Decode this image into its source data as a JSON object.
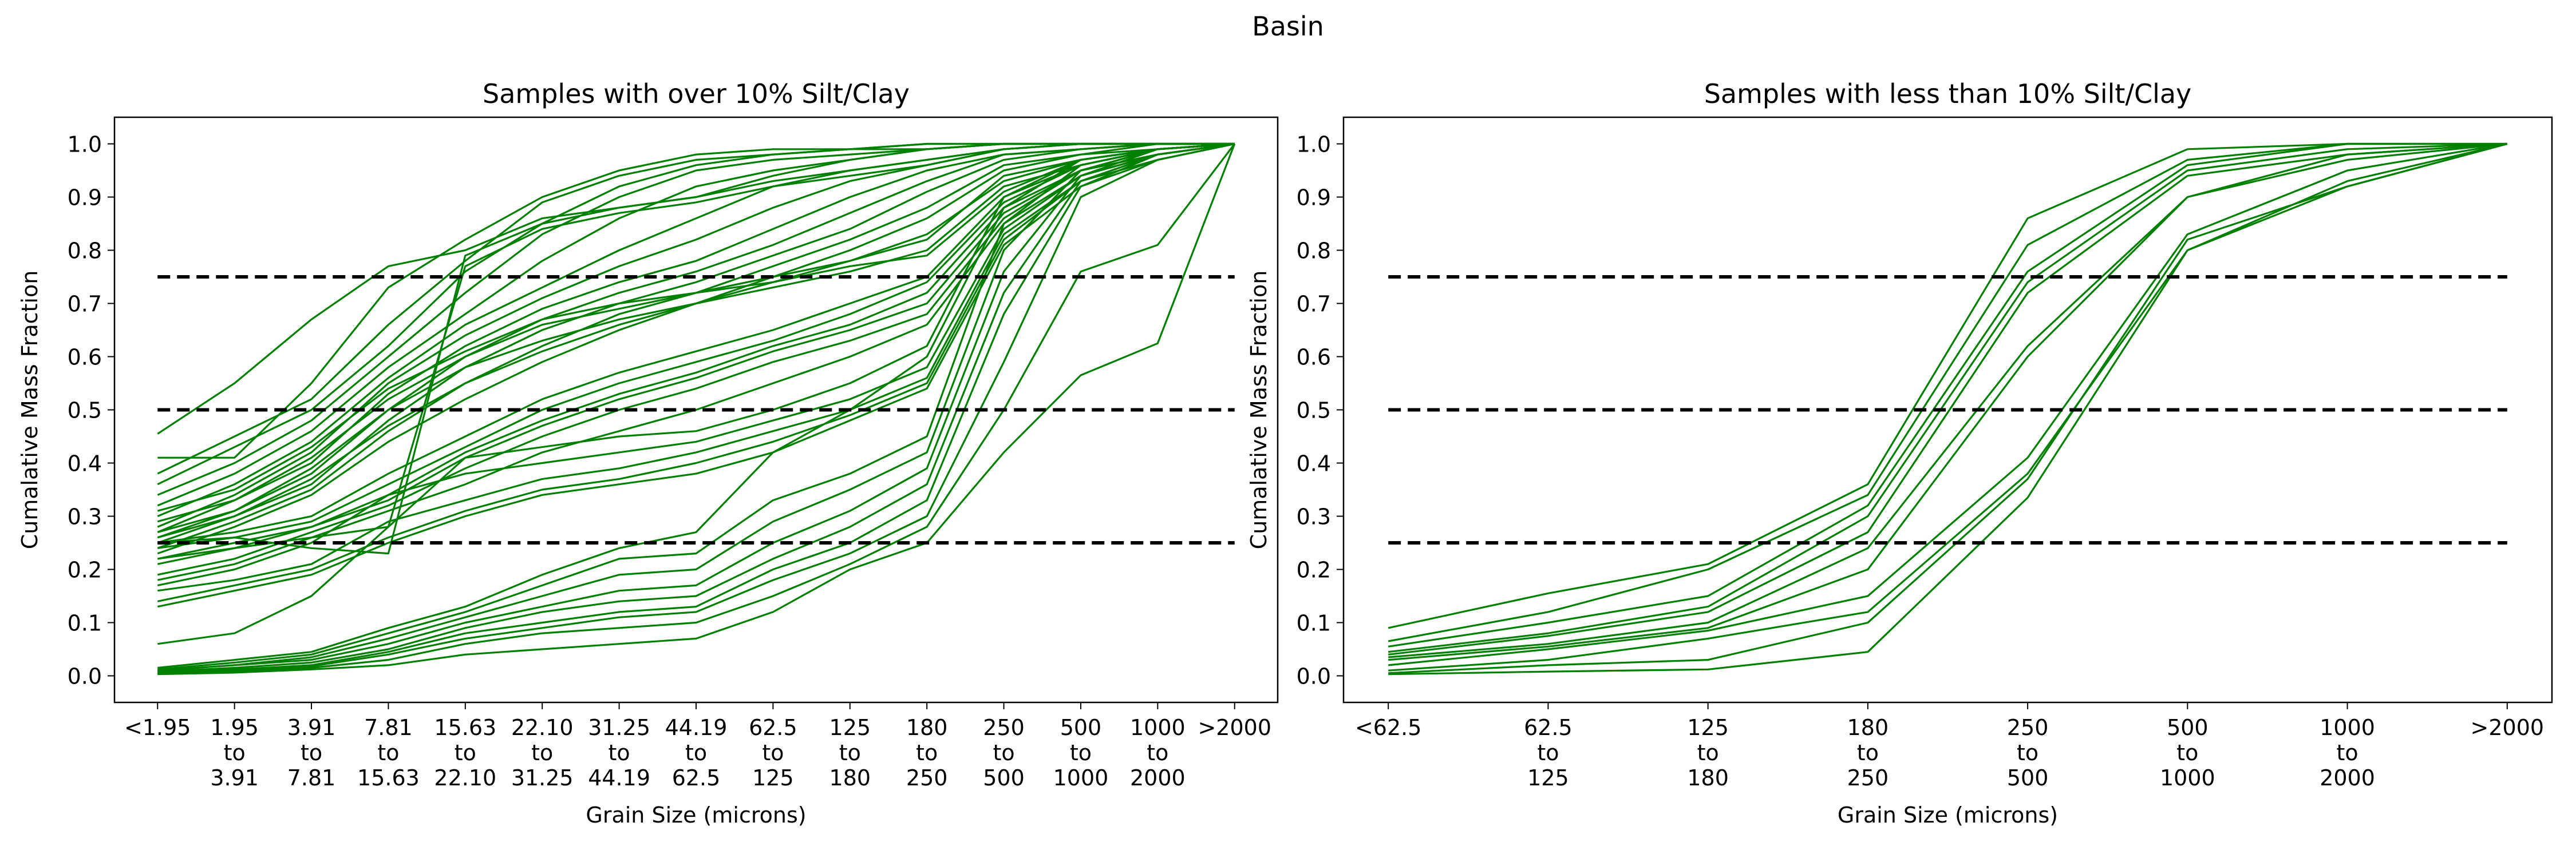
{
  "figure": {
    "suptitle": "Basin"
  },
  "colors": {
    "series": "#008000",
    "reference": "#000000"
  },
  "chart_data": [
    {
      "type": "line",
      "title": "Samples with over 10% Silt/Clay",
      "xlabel": "Grain Size (microns)",
      "ylabel": "Cumalative Mass Fraction",
      "ylim": [
        -0.05,
        1.05
      ],
      "yticks": [
        "0.0",
        "0.1",
        "0.2",
        "0.3",
        "0.4",
        "0.5",
        "0.6",
        "0.7",
        "0.8",
        "0.9",
        "1.0"
      ],
      "categories": [
        [
          "<1.95"
        ],
        [
          "1.95",
          "to",
          "3.91"
        ],
        [
          "3.91",
          "to",
          "7.81"
        ],
        [
          "7.81",
          "to",
          "15.63"
        ],
        [
          "15.63",
          "to",
          "22.10"
        ],
        [
          "22.10",
          "to",
          "31.25"
        ],
        [
          "31.25",
          "to",
          "44.19"
        ],
        [
          "44.19",
          "to",
          "62.5"
        ],
        [
          "62.5",
          "to",
          "125"
        ],
        [
          "125",
          "to",
          "180"
        ],
        [
          "180",
          "to",
          "250"
        ],
        [
          "250",
          "to",
          "500"
        ],
        [
          "500",
          "to",
          "1000"
        ],
        [
          "1000",
          "to",
          "2000"
        ],
        [
          ">2000"
        ]
      ],
      "reference_lines": [
        0.25,
        0.5,
        0.75
      ],
      "grid": false,
      "series": [
        {
          "values": [
            0.455,
            0.55,
            0.67,
            0.77,
            0.8,
            0.86,
            0.88,
            0.9,
            0.94,
            0.97,
            0.99,
            1.0,
            1.0,
            1.0,
            1.0
          ]
        },
        {
          "values": [
            0.41,
            0.41,
            0.55,
            0.73,
            0.82,
            0.9,
            0.95,
            0.98,
            0.99,
            0.99,
            1.0,
            1.0,
            1.0,
            1.0,
            1.0
          ]
        },
        {
          "values": [
            0.38,
            0.45,
            0.52,
            0.66,
            0.78,
            0.89,
            0.94,
            0.97,
            0.98,
            0.99,
            1.0,
            1.0,
            1.0,
            1.0,
            1.0
          ]
        },
        {
          "values": [
            0.36,
            0.43,
            0.5,
            0.62,
            0.76,
            0.85,
            0.92,
            0.96,
            0.98,
            0.99,
            0.99,
            1.0,
            1.0,
            1.0,
            1.0
          ]
        },
        {
          "values": [
            0.34,
            0.4,
            0.48,
            0.6,
            0.72,
            0.83,
            0.9,
            0.95,
            0.97,
            0.98,
            0.99,
            1.0,
            1.0,
            1.0,
            1.0
          ]
        },
        {
          "values": [
            0.32,
            0.38,
            0.46,
            0.58,
            0.68,
            0.78,
            0.86,
            0.92,
            0.95,
            0.97,
            0.99,
            1.0,
            1.0,
            1.0,
            1.0
          ]
        },
        {
          "values": [
            0.3,
            0.36,
            0.44,
            0.56,
            0.66,
            0.73,
            0.8,
            0.86,
            0.92,
            0.95,
            0.97,
            0.99,
            1.0,
            1.0,
            1.0
          ]
        },
        {
          "values": [
            0.28,
            0.34,
            0.42,
            0.55,
            0.64,
            0.71,
            0.77,
            0.82,
            0.88,
            0.93,
            0.96,
            0.99,
            1.0,
            1.0,
            1.0
          ]
        },
        {
          "values": [
            0.27,
            0.33,
            0.4,
            0.53,
            0.62,
            0.69,
            0.74,
            0.78,
            0.84,
            0.9,
            0.95,
            0.98,
            0.99,
            1.0,
            1.0
          ]
        },
        {
          "values": [
            0.26,
            0.31,
            0.38,
            0.5,
            0.6,
            0.67,
            0.72,
            0.76,
            0.81,
            0.87,
            0.93,
            0.98,
            0.99,
            1.0,
            1.0
          ]
        },
        {
          "values": [
            0.25,
            0.3,
            0.36,
            0.48,
            0.58,
            0.65,
            0.7,
            0.74,
            0.79,
            0.84,
            0.91,
            0.97,
            0.99,
            1.0,
            1.0
          ]
        },
        {
          "values": [
            0.24,
            0.29,
            0.35,
            0.46,
            0.55,
            0.62,
            0.68,
            0.72,
            0.77,
            0.82,
            0.88,
            0.96,
            0.98,
            1.0,
            1.0
          ]
        },
        {
          "values": [
            0.23,
            0.28,
            0.34,
            0.44,
            0.52,
            0.59,
            0.65,
            0.7,
            0.75,
            0.8,
            0.86,
            0.95,
            0.98,
            0.99,
            1.0
          ]
        },
        {
          "values": [
            0.26,
            0.3,
            0.37,
            0.47,
            0.55,
            0.61,
            0.66,
            0.7,
            0.74,
            0.78,
            0.83,
            0.93,
            0.97,
            0.99,
            1.0
          ]
        },
        {
          "values": [
            0.27,
            0.31,
            0.39,
            0.5,
            0.58,
            0.63,
            0.67,
            0.7,
            0.73,
            0.76,
            0.8,
            0.92,
            0.96,
            0.99,
            1.0
          ]
        },
        {
          "values": [
            0.29,
            0.33,
            0.41,
            0.52,
            0.6,
            0.66,
            0.69,
            0.72,
            0.75,
            0.78,
            0.82,
            0.94,
            0.97,
            0.99,
            1.0
          ]
        },
        {
          "values": [
            0.31,
            0.35,
            0.43,
            0.54,
            0.61,
            0.67,
            0.7,
            0.72,
            0.74,
            0.77,
            0.79,
            0.91,
            0.97,
            0.99,
            1.0
          ]
        },
        {
          "values": [
            0.25,
            0.27,
            0.3,
            0.38,
            0.45,
            0.52,
            0.57,
            0.61,
            0.65,
            0.7,
            0.75,
            0.9,
            0.96,
            0.99,
            1.0
          ]
        },
        {
          "values": [
            0.24,
            0.26,
            0.29,
            0.36,
            0.43,
            0.5,
            0.55,
            0.59,
            0.63,
            0.68,
            0.74,
            0.89,
            0.96,
            0.99,
            1.0
          ]
        },
        {
          "values": [
            0.22,
            0.25,
            0.28,
            0.34,
            0.42,
            0.48,
            0.53,
            0.57,
            0.62,
            0.66,
            0.72,
            0.88,
            0.95,
            0.99,
            1.0
          ]
        },
        {
          "values": [
            0.21,
            0.24,
            0.28,
            0.33,
            0.41,
            0.47,
            0.52,
            0.56,
            0.61,
            0.65,
            0.7,
            0.87,
            0.95,
            0.98,
            1.0
          ]
        },
        {
          "values": [
            0.19,
            0.22,
            0.27,
            0.32,
            0.39,
            0.45,
            0.5,
            0.54,
            0.59,
            0.63,
            0.68,
            0.86,
            0.95,
            0.98,
            1.0
          ]
        },
        {
          "values": [
            0.18,
            0.21,
            0.26,
            0.31,
            0.36,
            0.42,
            0.46,
            0.5,
            0.55,
            0.6,
            0.66,
            0.85,
            0.94,
            0.98,
            1.0
          ]
        },
        {
          "values": [
            0.17,
            0.2,
            0.25,
            0.34,
            0.38,
            0.4,
            0.42,
            0.44,
            0.48,
            0.52,
            0.58,
            0.84,
            0.94,
            0.98,
            1.0
          ]
        },
        {
          "values": [
            0.16,
            0.18,
            0.21,
            0.29,
            0.33,
            0.37,
            0.39,
            0.42,
            0.46,
            0.5,
            0.56,
            0.83,
            0.93,
            0.98,
            1.0
          ]
        },
        {
          "values": [
            0.14,
            0.17,
            0.2,
            0.26,
            0.31,
            0.35,
            0.37,
            0.4,
            0.44,
            0.49,
            0.55,
            0.82,
            0.93,
            0.97,
            1.0
          ]
        },
        {
          "values": [
            0.13,
            0.16,
            0.19,
            0.25,
            0.3,
            0.34,
            0.36,
            0.38,
            0.42,
            0.48,
            0.54,
            0.81,
            0.92,
            0.97,
            1.0
          ]
        },
        {
          "values": [
            0.25,
            0.26,
            0.24,
            0.23,
            0.79,
            0.85,
            0.88,
            0.9,
            0.93,
            0.95,
            0.97,
            0.99,
            1.0,
            1.0,
            1.0
          ]
        },
        {
          "values": [
            0.22,
            0.24,
            0.26,
            0.28,
            0.77,
            0.84,
            0.87,
            0.89,
            0.92,
            0.94,
            0.96,
            0.99,
            1.0,
            1.0,
            1.0
          ]
        },
        {
          "values": [
            0.06,
            0.08,
            0.15,
            0.28,
            0.41,
            0.43,
            0.45,
            0.46,
            0.5,
            0.55,
            0.62,
            0.9,
            0.97,
            0.99,
            1.0
          ]
        },
        {
          "values": [
            0.015,
            0.03,
            0.045,
            0.09,
            0.13,
            0.19,
            0.24,
            0.27,
            0.42,
            0.5,
            0.6,
            0.88,
            0.97,
            0.99,
            1.0
          ]
        },
        {
          "values": [
            0.012,
            0.025,
            0.04,
            0.08,
            0.12,
            0.17,
            0.22,
            0.23,
            0.33,
            0.38,
            0.45,
            0.85,
            0.96,
            0.99,
            1.0
          ]
        },
        {
          "values": [
            0.01,
            0.02,
            0.035,
            0.07,
            0.11,
            0.15,
            0.19,
            0.2,
            0.29,
            0.35,
            0.42,
            0.8,
            0.95,
            0.99,
            1.0
          ]
        },
        {
          "values": [
            0.01,
            0.02,
            0.03,
            0.06,
            0.1,
            0.13,
            0.16,
            0.17,
            0.25,
            0.31,
            0.39,
            0.76,
            0.94,
            0.99,
            1.0
          ]
        },
        {
          "values": [
            0.008,
            0.015,
            0.025,
            0.05,
            0.09,
            0.12,
            0.14,
            0.15,
            0.22,
            0.28,
            0.36,
            0.72,
            0.93,
            0.98,
            1.0
          ]
        },
        {
          "values": [
            0.006,
            0.012,
            0.02,
            0.045,
            0.08,
            0.1,
            0.12,
            0.13,
            0.2,
            0.25,
            0.33,
            0.68,
            0.92,
            0.98,
            1.0
          ]
        },
        {
          "values": [
            0.005,
            0.01,
            0.018,
            0.04,
            0.07,
            0.09,
            0.11,
            0.12,
            0.18,
            0.23,
            0.3,
            0.59,
            0.9,
            0.97,
            1.0
          ]
        },
        {
          "values": [
            0.004,
            0.008,
            0.015,
            0.03,
            0.06,
            0.08,
            0.09,
            0.1,
            0.15,
            0.21,
            0.28,
            0.5,
            0.76,
            0.81,
            1.0
          ]
        },
        {
          "values": [
            0.003,
            0.006,
            0.012,
            0.02,
            0.04,
            0.05,
            0.06,
            0.07,
            0.12,
            0.2,
            0.25,
            0.42,
            0.565,
            0.625,
            1.0
          ]
        }
      ]
    },
    {
      "type": "line",
      "title": "Samples with less than 10% Silt/Clay",
      "xlabel": "Grain Size (microns)",
      "ylabel": "Cumalative Mass Fraction",
      "ylim": [
        -0.05,
        1.05
      ],
      "yticks": [
        "0.0",
        "0.1",
        "0.2",
        "0.3",
        "0.4",
        "0.5",
        "0.6",
        "0.7",
        "0.8",
        "0.9",
        "1.0"
      ],
      "categories": [
        [
          "<62.5"
        ],
        [
          "62.5",
          "to",
          "125"
        ],
        [
          "125",
          "to",
          "180"
        ],
        [
          "180",
          "to",
          "250"
        ],
        [
          "250",
          "to",
          "500"
        ],
        [
          "500",
          "to",
          "1000"
        ],
        [
          "1000",
          "to",
          "2000"
        ],
        [
          ">2000"
        ]
      ],
      "reference_lines": [
        0.25,
        0.5,
        0.75
      ],
      "grid": false,
      "series": [
        {
          "values": [
            0.09,
            0.155,
            0.21,
            0.36,
            0.86,
            0.99,
            1.0,
            1.0
          ]
        },
        {
          "values": [
            0.065,
            0.12,
            0.2,
            0.34,
            0.81,
            0.97,
            1.0,
            1.0
          ]
        },
        {
          "values": [
            0.055,
            0.1,
            0.15,
            0.32,
            0.76,
            0.96,
            1.0,
            1.0
          ]
        },
        {
          "values": [
            0.045,
            0.08,
            0.13,
            0.3,
            0.74,
            0.95,
            0.99,
            1.0
          ]
        },
        {
          "values": [
            0.04,
            0.075,
            0.12,
            0.27,
            0.72,
            0.94,
            0.98,
            1.0
          ]
        },
        {
          "values": [
            0.035,
            0.06,
            0.1,
            0.24,
            0.62,
            0.9,
            0.98,
            1.0
          ]
        },
        {
          "values": [
            0.03,
            0.055,
            0.09,
            0.2,
            0.6,
            0.9,
            0.97,
            1.0
          ]
        },
        {
          "values": [
            0.02,
            0.05,
            0.085,
            0.15,
            0.41,
            0.83,
            0.95,
            1.0
          ]
        },
        {
          "values": [
            0.01,
            0.03,
            0.07,
            0.12,
            0.38,
            0.8,
            0.93,
            1.0
          ]
        },
        {
          "values": [
            0.005,
            0.02,
            0.03,
            0.1,
            0.37,
            0.82,
            0.92,
            1.0
          ]
        },
        {
          "values": [
            0.003,
            0.008,
            0.012,
            0.045,
            0.335,
            0.8,
            0.92,
            1.0
          ]
        }
      ]
    }
  ]
}
